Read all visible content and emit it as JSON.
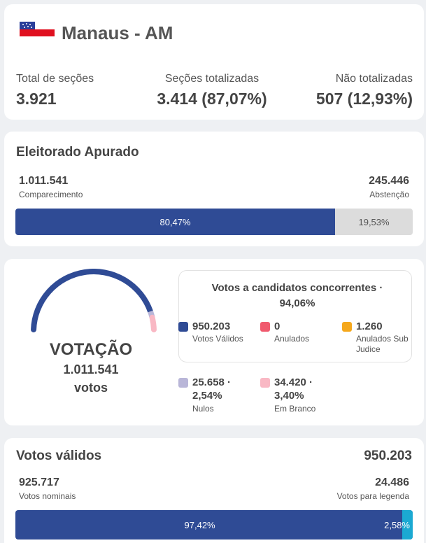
{
  "header": {
    "city": "Manaus - AM",
    "flag_icon": "amazonas-flag-icon",
    "stats": [
      {
        "label": "Total de seções",
        "value": "3.921"
      },
      {
        "label": "Seções totalizadas",
        "value": "3.414 (87,07%)"
      },
      {
        "label": "Não totalizadas",
        "value": "507 (12,93%)"
      }
    ]
  },
  "eleitorado": {
    "title": "Eleitorado Apurado",
    "comparecimento": {
      "value": "1.011.541",
      "label": "Comparecimento"
    },
    "abstencao": {
      "value": "245.446",
      "label": "Abstenção"
    },
    "bar": {
      "left_label": "80,47%",
      "right_label": "19,53%",
      "left_fraction": 0.8047
    }
  },
  "votacao": {
    "title": "VOTAÇÃO",
    "total": "1.011.541",
    "unit": "votos",
    "concorrentes_title": "Votos a candidatos concorrentes · 94,06%",
    "legend": [
      {
        "value": "950.203",
        "label": "Votos Válidos",
        "color": "#2f4b95"
      },
      {
        "value": "0",
        "label": "Anulados",
        "color": "#f05a6e"
      },
      {
        "value": "1.260",
        "label": "Anulados Sub",
        "label2": "Judice",
        "color": "#f5a81c"
      },
      {
        "value": "25.658 ·",
        "value2": "2,54%",
        "label": "Nulos",
        "color": "#b9b6d8"
      },
      {
        "value": "34.420 ·",
        "value2": "3,40%",
        "label": "Em Branco",
        "color": "#f9b8c4"
      }
    ],
    "gauge": {
      "validos_fraction": 0.9394,
      "nulos_fraction": 0.0254,
      "branco_fraction": 0.034,
      "colors": {
        "validos": "#2f4b95",
        "nulos": "#b9b6d8",
        "branco": "#f9b8c4"
      }
    }
  },
  "validos": {
    "title": "Votos válidos",
    "total": "950.203",
    "nominais": {
      "value": "925.717",
      "label": "Votos nominais"
    },
    "legenda": {
      "value": "24.486",
      "label": "Votos para legenda"
    },
    "bar": {
      "left_label": "97,42%",
      "right_label": "2,58%",
      "left_fraction": 0.9742
    }
  }
}
